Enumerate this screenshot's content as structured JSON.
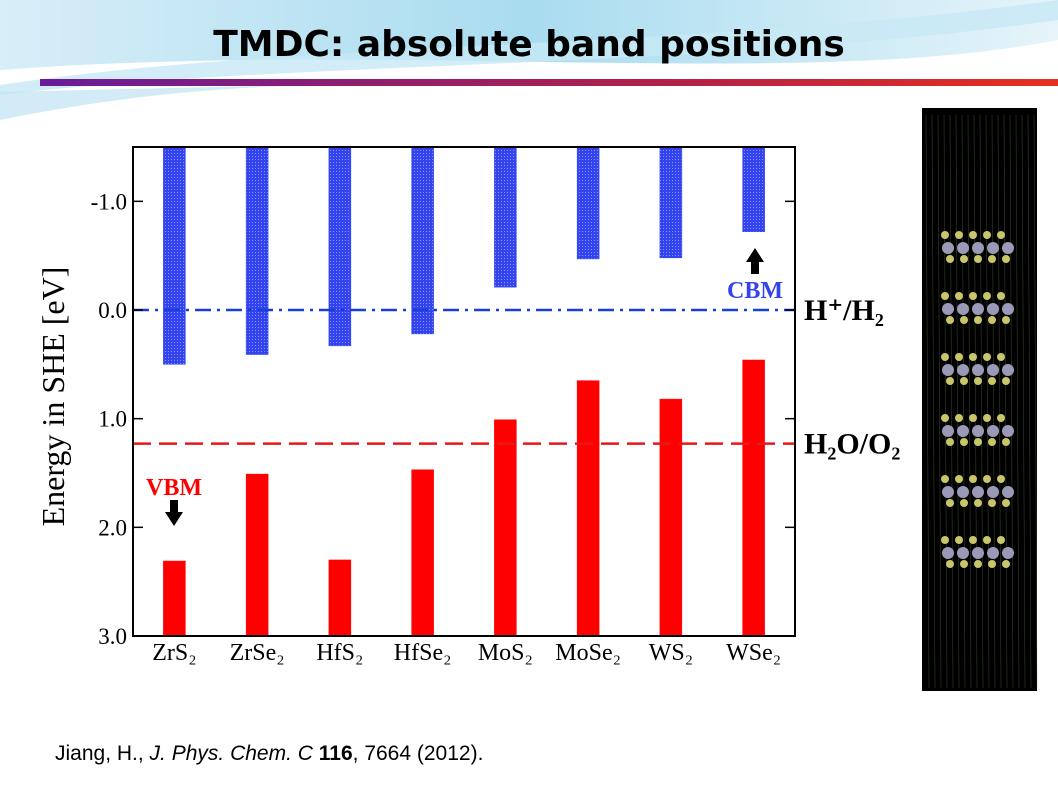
{
  "title": "TMDC: absolute band positions",
  "chart_data": {
    "type": "band_bar",
    "y_axis_label": "Energy in SHE [eV]",
    "categories": [
      "ZrS₂",
      "ZrSe₂",
      "HfS₂",
      "HfSe₂",
      "MoS₂",
      "MoSe₂",
      "WS₂",
      "WSe₂"
    ],
    "series": [
      {
        "name": "CBM",
        "color": "#3344ee",
        "values": [
          0.5,
          0.41,
          0.33,
          0.22,
          -0.21,
          -0.47,
          -0.48,
          -0.72
        ]
      },
      {
        "name": "VBM",
        "color": "#ff0000",
        "values": [
          2.31,
          1.51,
          2.3,
          1.47,
          1.01,
          0.65,
          0.82,
          0.46
        ]
      }
    ],
    "ylim": [
      -1.5,
      3.0
    ],
    "y_inverted": true,
    "yticks": [
      {
        "value": -1,
        "label": "-1.0"
      },
      {
        "value": 0,
        "label": "0.0"
      },
      {
        "value": 1,
        "label": "1.0"
      },
      {
        "value": 2,
        "label": "2.0"
      },
      {
        "value": 3,
        "label": "3.0"
      }
    ],
    "reference_lines": [
      {
        "value": 0,
        "label": "H⁺/H₂",
        "color": "#1a3fd6",
        "style": "dashdot"
      },
      {
        "value": 1.23,
        "label": "H₂O/O₂",
        "color": "#e81818",
        "style": "dashed"
      }
    ]
  },
  "citation": [
    "Jiang, H., ",
    "J. Phys. Chem. C",
    " 116",
    ", 7664 (2012)."
  ]
}
